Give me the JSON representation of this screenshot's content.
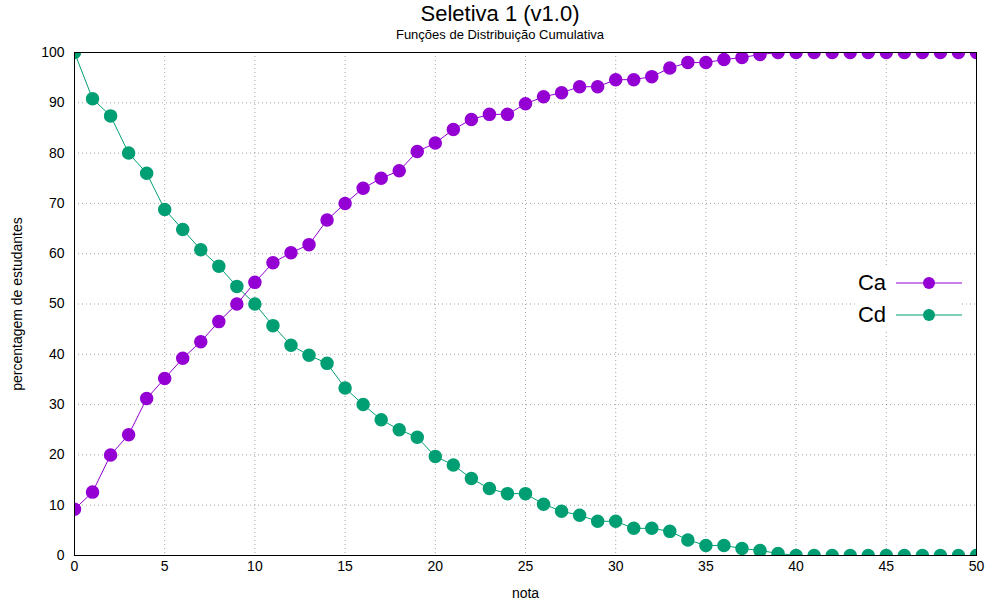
{
  "chart_data": {
    "type": "line",
    "title": "Seletiva 1 (v1.0)",
    "subtitle": "Funções de Distribuição Cumulativa",
    "x_label": "nota",
    "y_label": "percentagem de estudantes",
    "x": [
      0,
      1,
      2,
      3,
      4,
      5,
      6,
      7,
      8,
      9,
      10,
      11,
      12,
      13,
      14,
      15,
      16,
      17,
      18,
      19,
      20,
      21,
      22,
      23,
      24,
      25,
      26,
      27,
      28,
      29,
      30,
      31,
      32,
      33,
      34,
      35,
      36,
      37,
      38,
      39,
      40,
      41,
      42,
      43,
      44,
      45,
      46,
      47,
      48,
      49,
      50
    ],
    "series": [
      {
        "name": "Ca",
        "color": "#9400d3",
        "marker": "circle",
        "values": [
          9.2,
          12.6,
          20,
          24,
          31.2,
          35.2,
          39.2,
          42.5,
          46.5,
          50,
          54.3,
          58.2,
          60.2,
          61.8,
          66.7,
          70,
          73,
          75,
          76.5,
          80.3,
          82,
          84.7,
          86.7,
          87.7,
          87.7,
          89.8,
          91.2,
          92,
          93.2,
          93.2,
          94.6,
          94.6,
          95.2,
          96.9,
          98,
          98,
          98.6,
          99,
          99.6,
          100,
          100,
          100,
          100,
          100,
          100,
          100,
          100,
          100,
          100,
          100,
          100
        ]
      },
      {
        "name": "Cd",
        "color": "#009e73",
        "marker": "circle",
        "values": [
          100,
          90.8,
          87.4,
          80,
          76,
          68.8,
          64.8,
          60.8,
          57.5,
          53.5,
          50,
          45.7,
          41.8,
          39.8,
          38.2,
          33.3,
          30,
          27,
          25,
          23.5,
          19.7,
          18,
          15.3,
          13.3,
          12.3,
          12.3,
          10.2,
          8.8,
          8,
          6.8,
          6.8,
          5.4,
          5.4,
          4.8,
          3.1,
          2,
          2,
          1.4,
          1,
          0.4,
          0,
          0,
          0,
          0,
          0,
          0,
          0,
          0,
          0,
          0,
          0
        ]
      }
    ],
    "xlim": [
      0,
      50
    ],
    "xticks": [
      0,
      5,
      10,
      15,
      20,
      25,
      30,
      35,
      40,
      45,
      50
    ],
    "ylim": [
      0,
      100
    ],
    "yticks": [
      0,
      10,
      20,
      30,
      40,
      50,
      60,
      70,
      80,
      90,
      100
    ],
    "grid": true,
    "legend": "right"
  }
}
